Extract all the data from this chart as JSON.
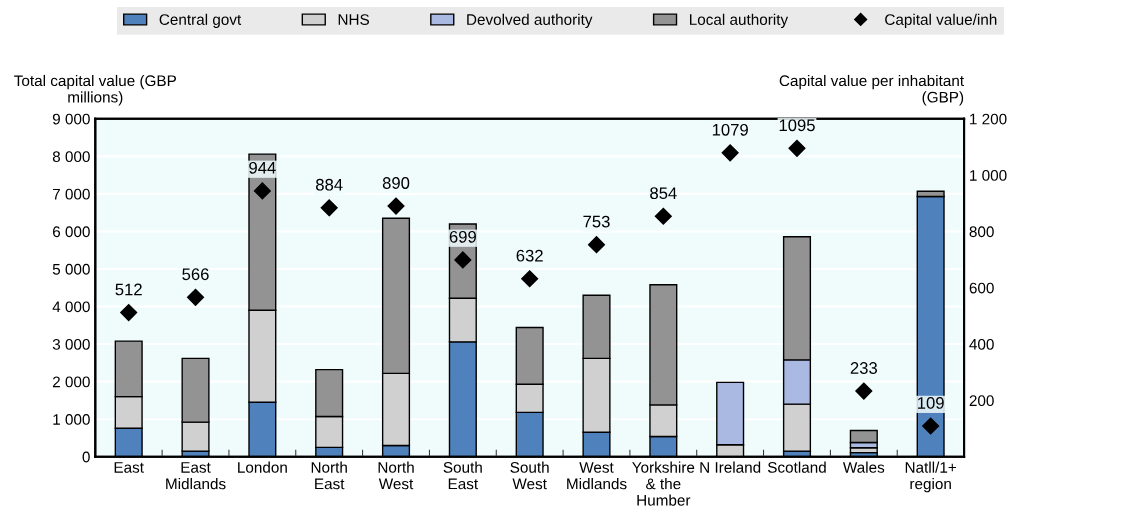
{
  "chart_data": {
    "type": "bar",
    "stacked": true,
    "categories": [
      "East",
      "East\nMidlands",
      "London",
      "North\nEast",
      "North\nWest",
      "South\nEast",
      "South\nWest",
      "West\nMidlands",
      "Yorkshire\n& the\nHumber",
      "N Ireland",
      "Scotland",
      "Wales",
      "Natll/1+\nregion"
    ],
    "series": [
      {
        "name": "Central govt",
        "color": "#4f81bd",
        "values": [
          760,
          150,
          1450,
          250,
          300,
          3060,
          1180,
          650,
          540,
          0,
          150,
          110,
          6930
        ]
      },
      {
        "name": "NHS",
        "color": "#d0d0d0",
        "values": [
          840,
          770,
          2450,
          820,
          1920,
          1160,
          750,
          1970,
          840,
          320,
          1250,
          130,
          0
        ]
      },
      {
        "name": "Devolved authority",
        "color": "#a9b9e2",
        "values": [
          0,
          0,
          0,
          0,
          0,
          0,
          0,
          0,
          0,
          1660,
          1180,
          140,
          0
        ]
      },
      {
        "name": "Local authority",
        "color": "#939393",
        "values": [
          1480,
          1700,
          4160,
          1250,
          4130,
          1980,
          1510,
          1680,
          3200,
          0,
          3280,
          320,
          140
        ]
      },
      {
        "name": "Capital value/inh",
        "type": "scatter",
        "axis": "y2",
        "color": "#000000",
        "marker": "diamond",
        "data_labels": true,
        "values": [
          512,
          566,
          944,
          884,
          890,
          699,
          632,
          753,
          854,
          1079,
          1095,
          233,
          109
        ]
      }
    ],
    "ylabel": "Total capital value (GBP\nmillions)",
    "y2label": "Capital value per inhabitant\n(GBP)",
    "ylim": [
      0,
      9000
    ],
    "yticks": [
      0,
      {
        "value": 1000,
        "label": "1 000"
      },
      {
        "value": 2000,
        "label": "2 000"
      },
      {
        "value": 3000,
        "label": "3 000"
      },
      {
        "value": 4000,
        "label": "4 000"
      },
      {
        "value": 5000,
        "label": "5 000"
      },
      {
        "value": 6000,
        "label": "6 000"
      },
      {
        "value": 7000,
        "label": "7 000"
      },
      {
        "value": 8000,
        "label": "8 000"
      },
      {
        "value": 9000,
        "label": "9 000"
      }
    ],
    "y2lim": [
      0,
      1200
    ],
    "y2ticks": [
      200,
      400,
      600,
      800,
      {
        "value": 1000,
        "label": "1 000"
      },
      {
        "value": 1200,
        "label": "1 200"
      }
    ],
    "grid": "y",
    "legend": "top"
  }
}
